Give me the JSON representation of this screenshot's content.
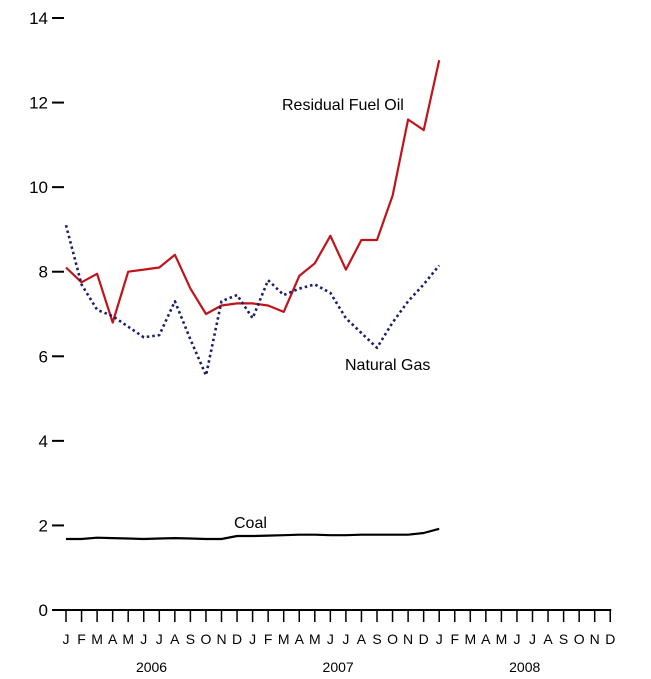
{
  "chart_data": {
    "type": "line",
    "title": "",
    "xlabel": "",
    "ylabel": "",
    "ylim": [
      0,
      14
    ],
    "yticks": [
      0,
      2,
      4,
      6,
      8,
      10,
      12,
      14
    ],
    "y_tick_labels": [
      "0",
      "2",
      "4",
      "6",
      "8",
      "10",
      "12",
      "14"
    ],
    "x_periods": 36,
    "month_labels": [
      "J",
      "F",
      "M",
      "A",
      "M",
      "J",
      "J",
      "A",
      "S",
      "O",
      "N",
      "D",
      "J",
      "F",
      "M",
      "A",
      "M",
      "J",
      "J",
      "A",
      "S",
      "O",
      "N",
      "D",
      "J",
      "F",
      "M",
      "A",
      "M",
      "J",
      "J",
      "A",
      "S",
      "O",
      "N",
      "D"
    ],
    "years": [
      "2006",
      "2007",
      "2008"
    ],
    "grid": false,
    "legend": "inline labels",
    "colors": {
      "residual_fuel_oil": "#c0141b",
      "natural_gas": "#1b1f6b",
      "coal": "#000000"
    },
    "series": [
      {
        "name": "Residual Fuel Oil",
        "key": "residual_fuel_oil",
        "style": "solid",
        "values": [
          8.1,
          7.75,
          7.95,
          6.8,
          8.0,
          8.05,
          8.1,
          8.4,
          7.6,
          7.0,
          7.2,
          7.25,
          7.25,
          7.2,
          7.05,
          7.9,
          8.2,
          8.85,
          8.05,
          8.75,
          8.75,
          9.8,
          11.6,
          11.35,
          13.0
        ]
      },
      {
        "name": "Natural Gas",
        "key": "natural_gas",
        "style": "dotted",
        "values": [
          9.1,
          7.7,
          7.1,
          6.95,
          6.7,
          6.45,
          6.5,
          7.3,
          6.4,
          5.55,
          7.3,
          7.45,
          6.9,
          7.8,
          7.45,
          7.6,
          7.7,
          7.5,
          6.9,
          6.55,
          6.2,
          6.8,
          7.3,
          7.7,
          8.15
        ]
      },
      {
        "name": "Coal",
        "key": "coal",
        "style": "solid",
        "values": [
          1.68,
          1.68,
          1.71,
          1.7,
          1.69,
          1.68,
          1.69,
          1.7,
          1.69,
          1.68,
          1.68,
          1.75,
          1.75,
          1.76,
          1.77,
          1.78,
          1.78,
          1.77,
          1.77,
          1.78,
          1.78,
          1.78,
          1.78,
          1.82,
          1.92
        ]
      }
    ]
  }
}
